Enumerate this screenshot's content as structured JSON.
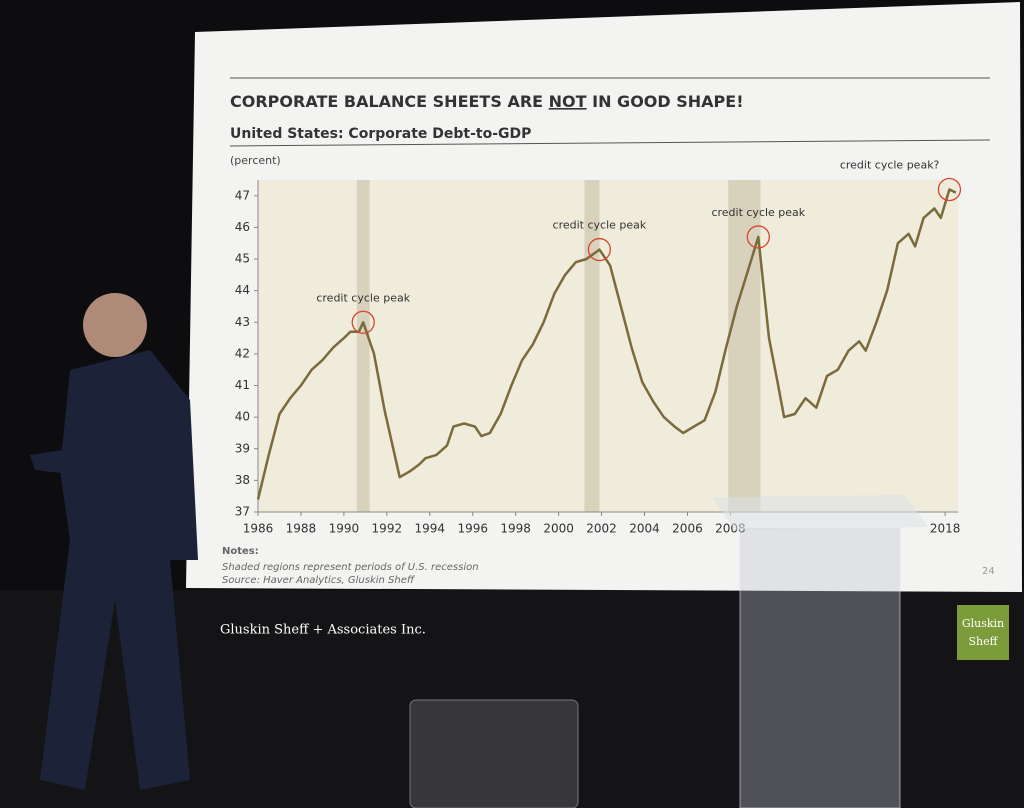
{
  "slide": {
    "title_parts": [
      "CORPORATE BALANCE SHEETS ARE",
      "NOT",
      "IN GOOD SHAPE!"
    ],
    "notes_heading": "Notes:",
    "notes": "Shaded regions represent periods of U.S. recession",
    "source": "Source: Haver Analytics, Gluskin Sheff",
    "page": "24"
  },
  "footer": {
    "company": "Gluskin Sheff + Associates Inc.",
    "logo": [
      "Gluskin",
      "Sheff"
    ]
  },
  "chart_data": {
    "type": "line",
    "title": "United States: Corporate Debt-to-GDP",
    "y_label": "(percent)",
    "x": [
      1986,
      1986.5,
      1987,
      1987.5,
      1988,
      1988.5,
      1989,
      1989.5,
      1990,
      1990.3,
      1990.7,
      1990.9,
      1991.4,
      1991.9,
      1992.3,
      1992.6,
      1993.1,
      1993.5,
      1993.8,
      1994.3,
      1994.8,
      1995.1,
      1995.6,
      1996.1,
      1996.4,
      1996.8,
      1997.3,
      1997.8,
      1998.3,
      1998.8,
      1999.3,
      1999.8,
      2000.3,
      2000.8,
      2001.3,
      2001.9,
      2002.4,
      2002.9,
      2003.4,
      2003.9,
      2004.4,
      2004.9,
      2005.4,
      2005.8,
      2006.3,
      2006.8,
      2007.3,
      2007.8,
      2008.3,
      2008.8,
      2009.3,
      2009.8,
      2010.2,
      2010.5,
      2011.0,
      2011.5,
      2012.0,
      2012.5,
      2013.0,
      2013.5,
      2014.0,
      2014.3,
      2014.8,
      2015.3,
      2015.8,
      2016.3,
      2016.6,
      2017.0,
      2017.5,
      2017.8,
      2018.2,
      2018.5
    ],
    "series": [
      {
        "name": "Corporate Debt-to-GDP",
        "color": "#7a6a3c",
        "values": [
          37.4,
          38.8,
          40.1,
          40.6,
          41.0,
          41.5,
          41.8,
          42.2,
          42.5,
          42.7,
          42.7,
          43.0,
          42.0,
          40.2,
          39.0,
          38.1,
          38.3,
          38.5,
          38.7,
          38.8,
          39.1,
          39.7,
          39.8,
          39.7,
          39.4,
          39.5,
          40.1,
          41.0,
          41.8,
          42.3,
          43.0,
          43.9,
          44.5,
          44.9,
          45.0,
          45.3,
          44.8,
          43.5,
          42.2,
          41.1,
          40.5,
          40.0,
          39.7,
          39.5,
          39.7,
          39.9,
          40.8,
          42.2,
          43.5,
          44.6,
          45.7,
          42.5,
          41.1,
          40.0,
          40.1,
          40.6,
          40.3,
          41.3,
          41.5,
          42.1,
          42.4,
          42.1,
          43.0,
          44.0,
          45.5,
          45.8,
          45.4,
          46.3,
          46.6,
          46.3,
          47.2,
          47.1
        ]
      }
    ],
    "recessions": [
      [
        1990.6,
        1991.2
      ],
      [
        2001.2,
        2001.9
      ],
      [
        2007.9,
        2009.4
      ]
    ],
    "annotations": [
      {
        "text": "credit cycle peak",
        "x": 1990.9,
        "y": 43.0
      },
      {
        "text": "credit cycle peak",
        "x": 2001.9,
        "y": 45.3
      },
      {
        "text": "credit cycle peak",
        "x": 2009.3,
        "y": 45.7
      },
      {
        "text": "credit cycle peak?",
        "x": 2018.2,
        "y": 47.2
      }
    ],
    "xlim": [
      1986,
      2018.6
    ],
    "ylim": [
      37,
      47.5
    ],
    "xticks": [
      1986,
      1988,
      1990,
      1992,
      1994,
      1996,
      1998,
      2000,
      2002,
      2004,
      2006,
      2008,
      2018
    ],
    "yticks": [
      37,
      38,
      39,
      40,
      41,
      42,
      43,
      44,
      45,
      46,
      47
    ]
  }
}
